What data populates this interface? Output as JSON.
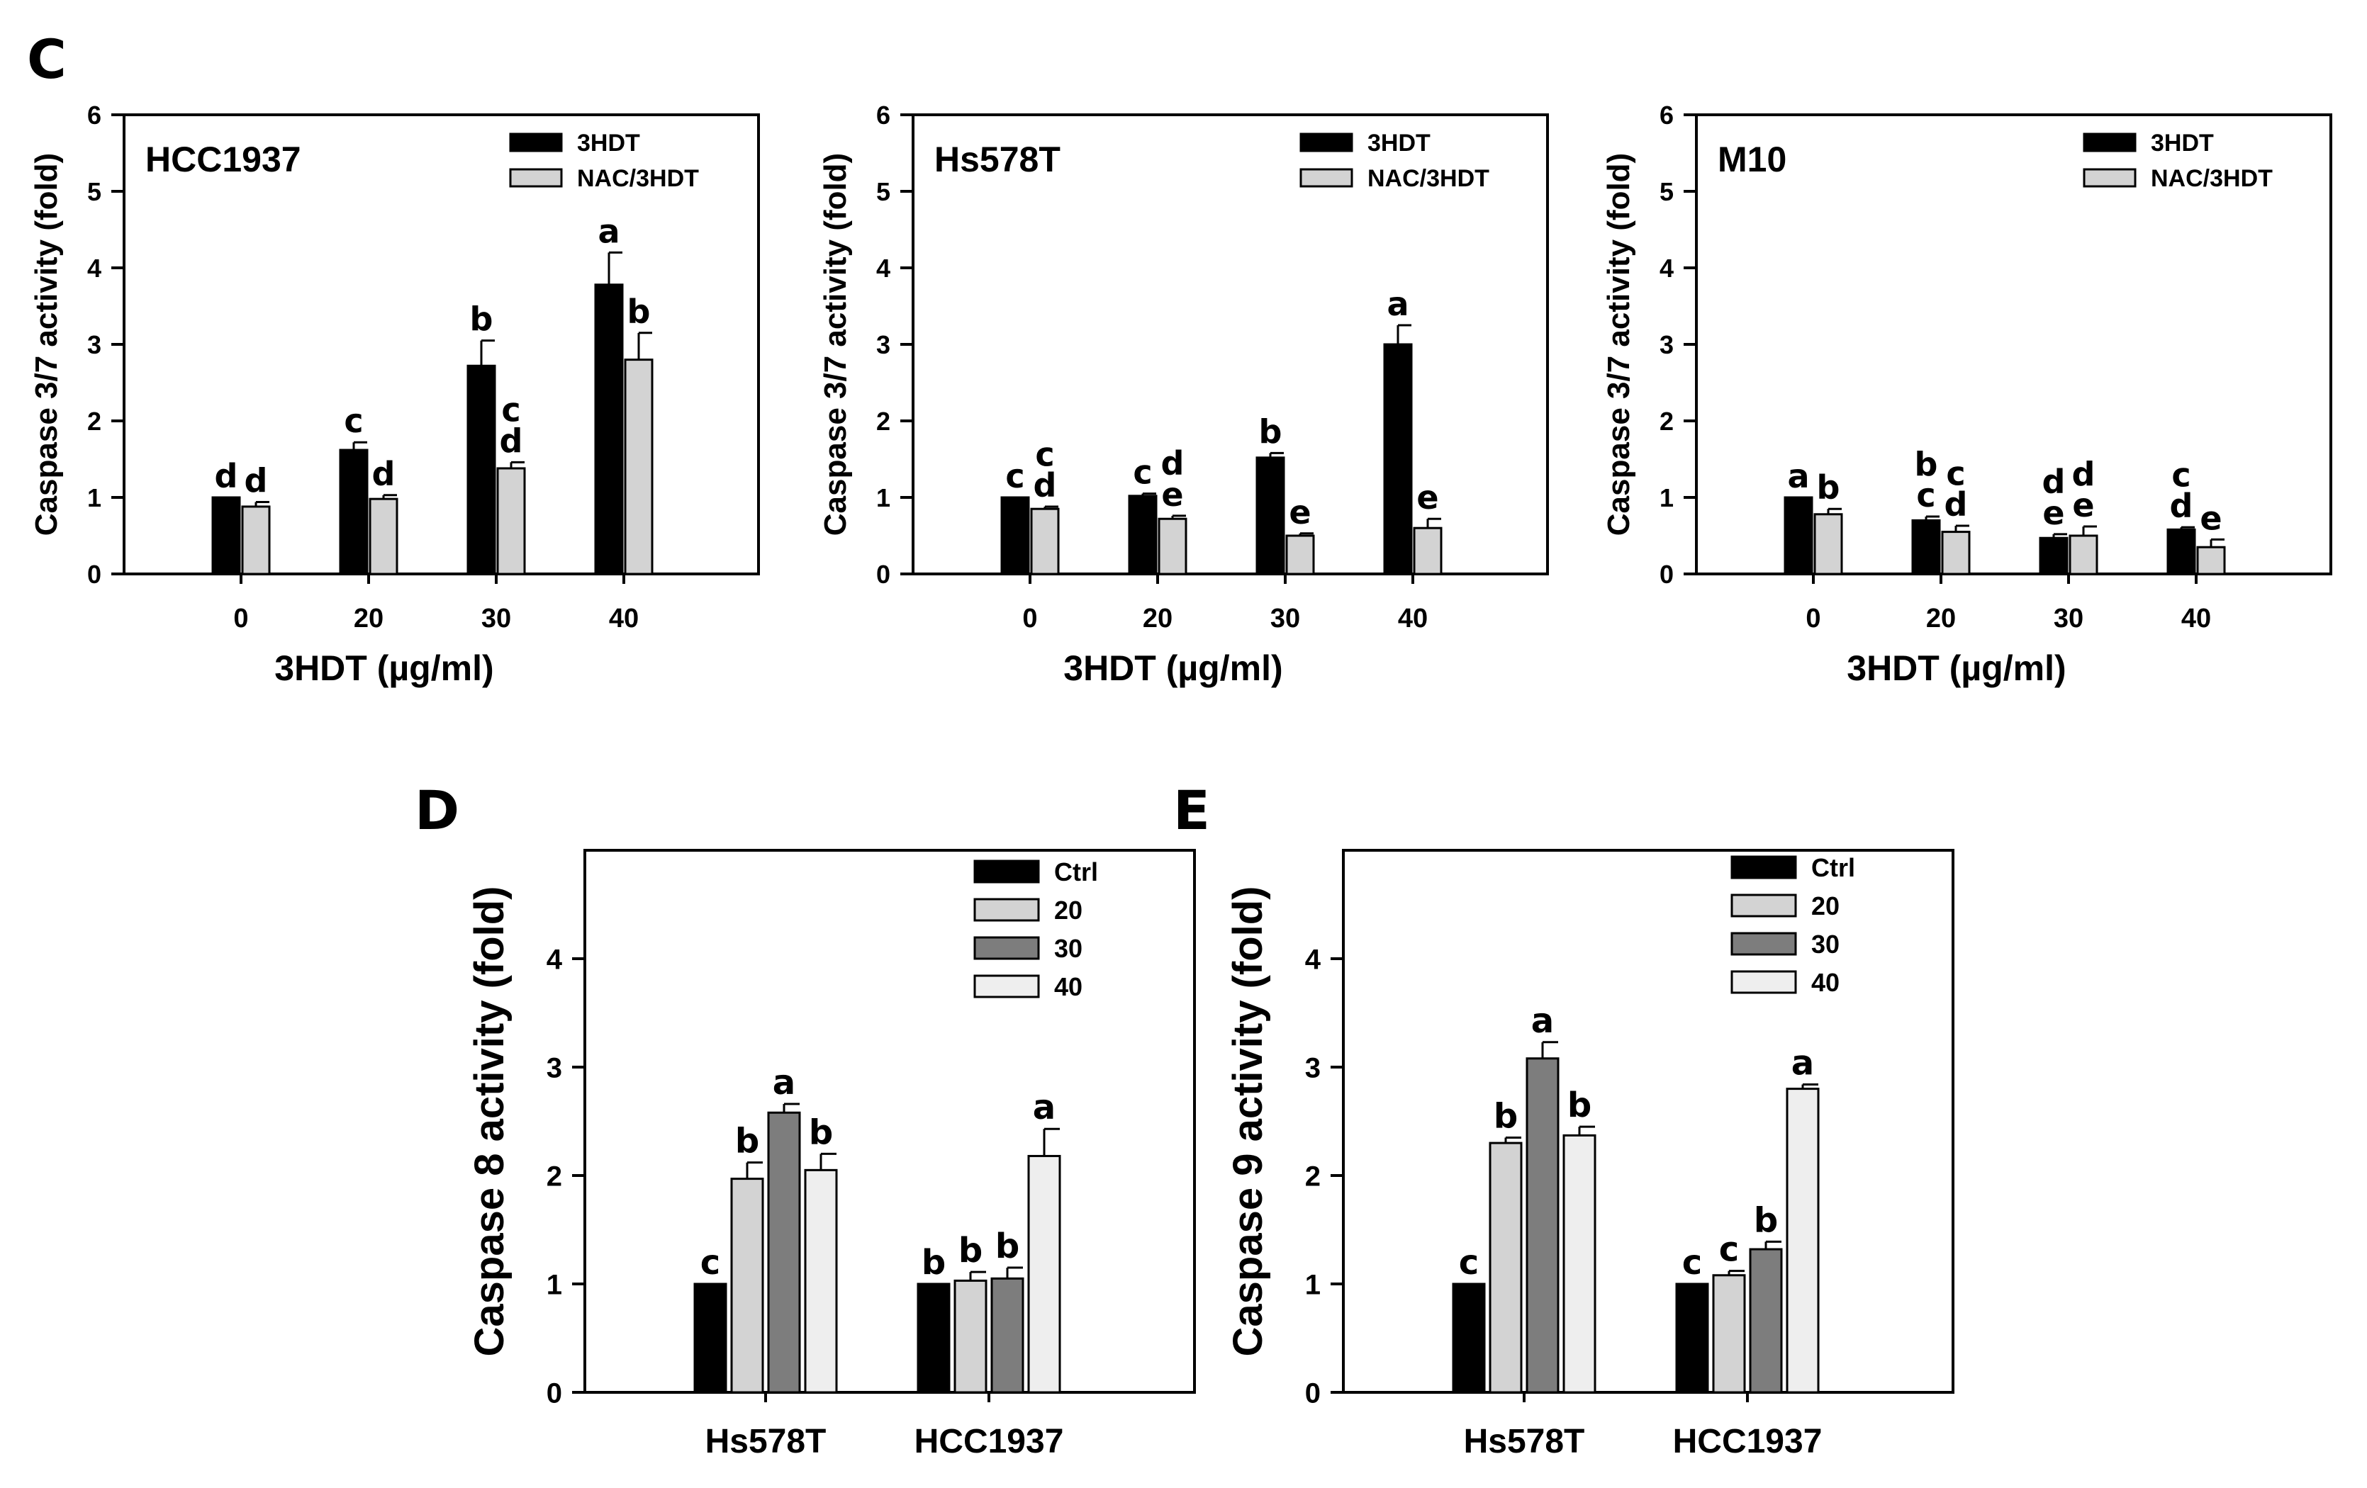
{
  "colors": {
    "black": "#000000",
    "light_gray": "#d3d3d3",
    "dark_gray": "#7d7d7d",
    "very_light": "#eeeeee",
    "axis": "#000000"
  },
  "chart_data": [
    {
      "panel": "C",
      "type": "bar",
      "title": "HCC1937",
      "xlabel": "3HDT (µg/ml)",
      "ylabel": "Caspase 3/7 activity (fold)",
      "ylim": [
        0,
        6
      ],
      "yticks": [
        0,
        1,
        2,
        3,
        4,
        5,
        6
      ],
      "categories": [
        "0",
        "20",
        "30",
        "40"
      ],
      "legend_position": "top-right",
      "series": [
        {
          "name": "3HDT",
          "color": "#000000",
          "values": [
            1.0,
            1.62,
            2.72,
            3.78
          ],
          "errors": [
            0.0,
            0.1,
            0.33,
            0.42
          ],
          "letters": [
            "d",
            "c",
            "b",
            "a"
          ]
        },
        {
          "name": "NAC/3HDT",
          "color": "#d3d3d3",
          "values": [
            0.88,
            0.98,
            1.38,
            2.8
          ],
          "errors": [
            0.06,
            0.05,
            0.08,
            0.35
          ],
          "letters": [
            "d",
            "d",
            "c\nd",
            "b"
          ]
        }
      ]
    },
    {
      "panel": "",
      "type": "bar",
      "title": "Hs578T",
      "xlabel": "3HDT (µg/ml)",
      "ylabel": "Caspase 3/7 activity (fold)",
      "ylim": [
        0,
        6
      ],
      "yticks": [
        0,
        1,
        2,
        3,
        4,
        5,
        6
      ],
      "categories": [
        "0",
        "20",
        "30",
        "40"
      ],
      "legend_position": "top-right",
      "series": [
        {
          "name": "3HDT",
          "color": "#000000",
          "values": [
            1.0,
            1.02,
            1.52,
            3.0
          ],
          "errors": [
            0.0,
            0.03,
            0.06,
            0.25
          ],
          "letters": [
            "c",
            "c",
            "b",
            "a"
          ]
        },
        {
          "name": "NAC/3HDT",
          "color": "#d3d3d3",
          "values": [
            0.85,
            0.72,
            0.5,
            0.6
          ],
          "errors": [
            0.03,
            0.04,
            0.03,
            0.12
          ],
          "letters": [
            "c\nd",
            "d\ne",
            "e",
            "e"
          ]
        }
      ]
    },
    {
      "panel": "",
      "type": "bar",
      "title": "M10",
      "xlabel": "3HDT (µg/ml)",
      "ylabel": "Caspase 3/7 activity (fold)",
      "ylim": [
        0,
        6
      ],
      "yticks": [
        0,
        1,
        2,
        3,
        4,
        5,
        6
      ],
      "categories": [
        "0",
        "20",
        "30",
        "40"
      ],
      "legend_position": "top-right",
      "series": [
        {
          "name": "3HDT",
          "color": "#000000",
          "values": [
            1.0,
            0.7,
            0.47,
            0.58
          ],
          "errors": [
            0.0,
            0.05,
            0.05,
            0.03
          ],
          "letters": [
            "a",
            "b\nc",
            "d\ne",
            "c\nd"
          ]
        },
        {
          "name": "NAC/3HDT",
          "color": "#d3d3d3",
          "values": [
            0.78,
            0.55,
            0.5,
            0.35
          ],
          "errors": [
            0.07,
            0.08,
            0.12,
            0.1
          ],
          "letters": [
            "b",
            "c\nd",
            "d\ne",
            "e"
          ]
        }
      ]
    },
    {
      "panel": "D",
      "type": "bar",
      "title": "",
      "xlabel": "",
      "ylabel": "Caspase 8 activity (fold)",
      "ylim": [
        0,
        5
      ],
      "yticks": [
        0,
        1,
        2,
        3,
        4
      ],
      "categories": [
        "Hs578T",
        "HCC1937"
      ],
      "legend_position": "top-right",
      "series": [
        {
          "name": "Ctrl",
          "color": "#000000",
          "values": [
            1.0,
            1.0
          ],
          "errors": [
            0.0,
            0.0
          ],
          "letters": [
            "c",
            "b"
          ]
        },
        {
          "name": "20",
          "color": "#d3d3d3",
          "values": [
            1.97,
            1.03
          ],
          "errors": [
            0.15,
            0.08
          ],
          "letters": [
            "b",
            "b"
          ]
        },
        {
          "name": "30",
          "color": "#7d7d7d",
          "values": [
            2.58,
            1.05
          ],
          "errors": [
            0.08,
            0.1
          ],
          "letters": [
            "a",
            "b"
          ]
        },
        {
          "name": "40",
          "color": "#eeeeee",
          "values": [
            2.05,
            2.18
          ],
          "errors": [
            0.15,
            0.25
          ],
          "letters": [
            "b",
            "a"
          ]
        }
      ]
    },
    {
      "panel": "E",
      "type": "bar",
      "title": "",
      "xlabel": "",
      "ylabel": "Caspase 9 activity (fold)",
      "ylim": [
        0,
        5
      ],
      "yticks": [
        0,
        1,
        2,
        3,
        4
      ],
      "categories": [
        "Hs578T",
        "HCC1937"
      ],
      "legend_position": "top-right",
      "series": [
        {
          "name": "Ctrl",
          "color": "#000000",
          "values": [
            1.0,
            1.0
          ],
          "errors": [
            0.0,
            0.0
          ],
          "letters": [
            "c",
            "c"
          ]
        },
        {
          "name": "20",
          "color": "#d3d3d3",
          "values": [
            2.3,
            1.08
          ],
          "errors": [
            0.05,
            0.04
          ],
          "letters": [
            "b",
            "c"
          ]
        },
        {
          "name": "30",
          "color": "#7d7d7d",
          "values": [
            3.08,
            1.32
          ],
          "errors": [
            0.15,
            0.07
          ],
          "letters": [
            "a",
            "b"
          ]
        },
        {
          "name": "40",
          "color": "#eeeeee",
          "values": [
            2.37,
            2.8
          ],
          "errors": [
            0.08,
            0.04
          ],
          "letters": [
            "b",
            "a"
          ]
        }
      ]
    }
  ]
}
